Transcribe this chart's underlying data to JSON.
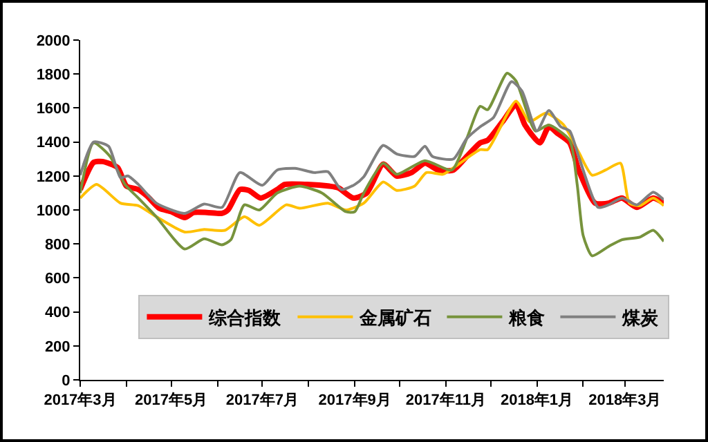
{
  "chart_data": {
    "type": "line",
    "xlim": [
      "2017-03-01",
      "2018-03-27"
    ],
    "ylim": [
      0,
      2000
    ],
    "yticks": [
      0,
      200,
      400,
      600,
      800,
      1000,
      1200,
      1400,
      1600,
      1800,
      2000
    ],
    "xticks": [
      {
        "value": "2017-03-01",
        "label": "2017年3月"
      },
      {
        "value": "2017-04-01",
        "label": null
      },
      {
        "value": "2017-05-01",
        "label": "2017年5月"
      },
      {
        "value": "2017-06-01",
        "label": null
      },
      {
        "value": "2017-07-01",
        "label": "2017年7月"
      },
      {
        "value": "2017-08-01",
        "label": null
      },
      {
        "value": "2017-09-01",
        "label": "2017年9月"
      },
      {
        "value": "2017-10-01",
        "label": null
      },
      {
        "value": "2017-11-01",
        "label": "2017年11月"
      },
      {
        "value": "2017-12-01",
        "label": null
      },
      {
        "value": "2018-01-01",
        "label": "2018年1月"
      },
      {
        "value": "2018-02-01",
        "label": null
      },
      {
        "value": "2018-03-01",
        "label": "2018年3月"
      }
    ],
    "grid": false,
    "legend": "bottom",
    "marker": "none",
    "line_style": "solid",
    "series": [
      {
        "name": "综合指数",
        "color": "#ff0000",
        "x": [
          "2017-03-01",
          "2017-03-10",
          "2017-03-16",
          "2017-03-26",
          "2017-04-01",
          "2017-04-09",
          "2017-04-15",
          "2017-04-23",
          "2017-05-01",
          "2017-05-10",
          "2017-05-16",
          "2017-05-25",
          "2017-06-04",
          "2017-06-08",
          "2017-06-16",
          "2017-06-22",
          "2017-06-30",
          "2017-07-11",
          "2017-07-16",
          "2017-07-31",
          "2017-08-15",
          "2017-08-21",
          "2017-08-31",
          "2017-09-09",
          "2017-09-20",
          "2017-09-29",
          "2017-10-09",
          "2017-10-18",
          "2017-10-27",
          "2017-11-06",
          "2017-11-15",
          "2017-11-24",
          "2017-11-29",
          "2017-12-09",
          "2017-12-18",
          "2017-12-24",
          "2018-01-03",
          "2018-01-09",
          "2018-01-15",
          "2018-01-23",
          "2018-01-29",
          "2018-02-09",
          "2018-02-18",
          "2018-02-27",
          "2018-03-09",
          "2018-03-20",
          "2018-03-27"
        ],
        "values": [
          1120,
          1280,
          1285,
          1250,
          1140,
          1120,
          1080,
          1010,
          990,
          955,
          985,
          985,
          980,
          1000,
          1120,
          1115,
          1070,
          1120,
          1150,
          1150,
          1140,
          1130,
          1070,
          1100,
          1270,
          1200,
          1220,
          1275,
          1235,
          1235,
          1315,
          1395,
          1410,
          1520,
          1620,
          1500,
          1395,
          1490,
          1450,
          1395,
          1235,
          1040,
          1040,
          1070,
          1015,
          1070,
          1040
        ]
      },
      {
        "name": "金属矿石",
        "color": "#ffc000",
        "x": [
          "2017-03-01",
          "2017-03-12",
          "2017-03-28",
          "2017-04-09",
          "2017-04-21",
          "2017-05-10",
          "2017-05-23",
          "2017-06-06",
          "2017-06-19",
          "2017-06-29",
          "2017-07-17",
          "2017-07-26",
          "2017-08-14",
          "2017-08-26",
          "2017-09-07",
          "2017-09-20",
          "2017-09-29",
          "2017-10-11",
          "2017-10-19",
          "2017-10-30",
          "2017-11-08",
          "2017-11-24",
          "2017-11-29",
          "2017-12-18",
          "2017-12-27",
          "2018-01-07",
          "2018-01-19",
          "2018-01-29",
          "2018-02-07",
          "2018-02-16",
          "2018-02-26",
          "2018-03-04",
          "2018-03-11",
          "2018-03-20",
          "2018-03-27"
        ],
        "values": [
          1070,
          1150,
          1040,
          1025,
          960,
          870,
          885,
          880,
          960,
          910,
          1030,
          1010,
          1040,
          1000,
          1040,
          1165,
          1115,
          1140,
          1220,
          1210,
          1260,
          1355,
          1355,
          1640,
          1520,
          1570,
          1500,
          1340,
          1205,
          1235,
          1275,
          1040,
          1025,
          1070,
          1025
        ]
      },
      {
        "name": "粮食",
        "color": "#77933c",
        "x": [
          "2017-03-01",
          "2017-03-10",
          "2017-03-21",
          "2017-03-31",
          "2017-04-09",
          "2017-04-21",
          "2017-05-10",
          "2017-05-23",
          "2017-06-04",
          "2017-06-10",
          "2017-06-19",
          "2017-06-29",
          "2017-07-11",
          "2017-07-26",
          "2017-08-10",
          "2017-08-26",
          "2017-09-01",
          "2017-09-07",
          "2017-09-20",
          "2017-09-29",
          "2017-10-18",
          "2017-11-05",
          "2017-11-15",
          "2017-11-24",
          "2017-11-29",
          "2017-12-12",
          "2017-12-18",
          "2017-12-31",
          "2018-01-09",
          "2018-01-23",
          "2018-01-28",
          "2018-02-01",
          "2018-02-07",
          "2018-02-18",
          "2018-02-27",
          "2018-03-11",
          "2018-03-20",
          "2018-03-27"
        ],
        "values": [
          1100,
          1395,
          1315,
          1150,
          1070,
          960,
          770,
          830,
          795,
          825,
          1030,
          1000,
          1100,
          1140,
          1100,
          990,
          990,
          1100,
          1275,
          1210,
          1290,
          1235,
          1420,
          1610,
          1590,
          1805,
          1760,
          1465,
          1500,
          1410,
          1150,
          850,
          730,
          785,
          825,
          840,
          880,
          815
        ]
      },
      {
        "name": "煤炭",
        "color": "#808080",
        "x": [
          "2017-03-01",
          "2017-03-10",
          "2017-03-20",
          "2017-03-28",
          "2017-04-02",
          "2017-04-09",
          "2017-04-21",
          "2017-05-10",
          "2017-05-23",
          "2017-06-04",
          "2017-06-16",
          "2017-07-01",
          "2017-07-11",
          "2017-07-23",
          "2017-08-05",
          "2017-08-14",
          "2017-08-23",
          "2017-09-01",
          "2017-09-07",
          "2017-09-20",
          "2017-09-29",
          "2017-10-11",
          "2017-10-18",
          "2017-10-23",
          "2017-11-06",
          "2017-11-15",
          "2017-11-24",
          "2017-12-03",
          "2017-12-15",
          "2017-12-22",
          "2018-01-01",
          "2018-01-09",
          "2018-01-17",
          "2018-01-23",
          "2018-01-29",
          "2018-02-11",
          "2018-02-18",
          "2018-02-27",
          "2018-03-09",
          "2018-03-20",
          "2018-03-27"
        ],
        "values": [
          1205,
          1400,
          1375,
          1190,
          1200,
          1150,
          1040,
          980,
          1035,
          1015,
          1220,
          1145,
          1235,
          1245,
          1220,
          1225,
          1120,
          1150,
          1195,
          1380,
          1330,
          1315,
          1375,
          1315,
          1300,
          1420,
          1490,
          1545,
          1755,
          1700,
          1465,
          1585,
          1490,
          1465,
          1315,
          1015,
          1030,
          1070,
          1030,
          1105,
          1060
        ]
      }
    ]
  }
}
